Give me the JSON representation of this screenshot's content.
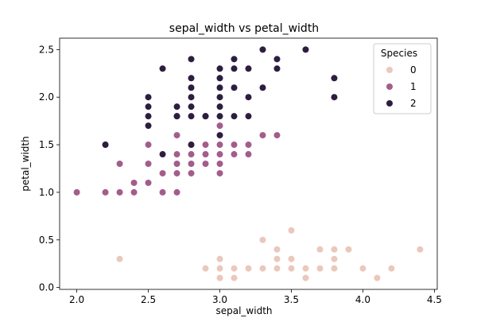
{
  "chart_data": {
    "type": "scatter",
    "title": "sepal_width vs petal_width",
    "xlabel": "sepal_width",
    "ylabel": "petal_width",
    "xlim": [
      1.88,
      4.52
    ],
    "ylim": [
      -0.02,
      2.62
    ],
    "xticks": [
      2.0,
      2.5,
      3.0,
      3.5,
      4.0,
      4.5
    ],
    "xtick_labels": [
      "2.0",
      "2.5",
      "3.0",
      "3.5",
      "4.0",
      "4.5"
    ],
    "yticks": [
      0.0,
      0.5,
      1.0,
      1.5,
      2.0,
      2.5
    ],
    "ytick_labels": [
      "0.0",
      "0.5",
      "1.0",
      "1.5",
      "2.0",
      "2.5"
    ],
    "grid": false,
    "legend": {
      "title": "Species",
      "placement": "top-right"
    },
    "series": [
      {
        "name": "0",
        "color": "#ebc8bc",
        "points": [
          [
            2.3,
            0.3
          ],
          [
            2.9,
            0.2
          ],
          [
            3.0,
            0.1
          ],
          [
            3.0,
            0.2
          ],
          [
            3.0,
            0.3
          ],
          [
            3.1,
            0.1
          ],
          [
            3.1,
            0.2
          ],
          [
            3.2,
            0.2
          ],
          [
            3.3,
            0.2
          ],
          [
            3.3,
            0.5
          ],
          [
            3.4,
            0.2
          ],
          [
            3.4,
            0.3
          ],
          [
            3.4,
            0.4
          ],
          [
            3.5,
            0.2
          ],
          [
            3.5,
            0.3
          ],
          [
            3.5,
            0.6
          ],
          [
            3.6,
            0.1
          ],
          [
            3.6,
            0.2
          ],
          [
            3.7,
            0.2
          ],
          [
            3.7,
            0.4
          ],
          [
            3.8,
            0.2
          ],
          [
            3.8,
            0.3
          ],
          [
            3.8,
            0.4
          ],
          [
            3.9,
            0.4
          ],
          [
            4.0,
            0.2
          ],
          [
            4.1,
            0.1
          ],
          [
            4.2,
            0.2
          ],
          [
            4.4,
            0.4
          ]
        ]
      },
      {
        "name": "1",
        "color": "#a35d8b",
        "points": [
          [
            2.0,
            1.0
          ],
          [
            2.2,
            1.0
          ],
          [
            2.2,
            1.5
          ],
          [
            2.3,
            1.0
          ],
          [
            2.3,
            1.3
          ],
          [
            2.4,
            1.0
          ],
          [
            2.4,
            1.1
          ],
          [
            2.5,
            1.1
          ],
          [
            2.5,
            1.3
          ],
          [
            2.5,
            1.5
          ],
          [
            2.6,
            1.0
          ],
          [
            2.6,
            1.2
          ],
          [
            2.7,
            1.0
          ],
          [
            2.7,
            1.2
          ],
          [
            2.7,
            1.3
          ],
          [
            2.7,
            1.4
          ],
          [
            2.7,
            1.6
          ],
          [
            2.8,
            1.2
          ],
          [
            2.8,
            1.3
          ],
          [
            2.8,
            1.4
          ],
          [
            2.8,
            1.5
          ],
          [
            2.9,
            1.3
          ],
          [
            2.9,
            1.4
          ],
          [
            2.9,
            1.5
          ],
          [
            3.0,
            1.2
          ],
          [
            3.0,
            1.4
          ],
          [
            3.0,
            1.5
          ],
          [
            3.0,
            1.7
          ],
          [
            3.1,
            1.4
          ],
          [
            3.1,
            1.5
          ],
          [
            3.2,
            1.4
          ],
          [
            3.2,
            1.5
          ],
          [
            3.3,
            1.6
          ],
          [
            3.4,
            1.6
          ],
          [
            3.0,
            1.3
          ]
        ]
      },
      {
        "name": "2",
        "color": "#2d1e3e",
        "points": [
          [
            2.2,
            1.5
          ],
          [
            2.5,
            1.7
          ],
          [
            2.5,
            1.8
          ],
          [
            2.5,
            1.9
          ],
          [
            2.5,
            2.0
          ],
          [
            2.6,
            1.4
          ],
          [
            2.6,
            2.3
          ],
          [
            2.7,
            1.8
          ],
          [
            2.7,
            1.9
          ],
          [
            2.8,
            1.5
          ],
          [
            2.8,
            1.8
          ],
          [
            2.8,
            1.9
          ],
          [
            2.8,
            2.0
          ],
          [
            2.8,
            2.1
          ],
          [
            2.8,
            2.2
          ],
          [
            2.8,
            2.4
          ],
          [
            2.9,
            1.8
          ],
          [
            3.0,
            1.6
          ],
          [
            3.0,
            1.8
          ],
          [
            3.0,
            1.9
          ],
          [
            3.0,
            2.0
          ],
          [
            3.0,
            2.1
          ],
          [
            3.0,
            2.2
          ],
          [
            3.0,
            2.3
          ],
          [
            3.1,
            1.8
          ],
          [
            3.1,
            2.1
          ],
          [
            3.1,
            2.3
          ],
          [
            3.1,
            2.4
          ],
          [
            3.2,
            1.8
          ],
          [
            3.2,
            2.0
          ],
          [
            3.2,
            2.3
          ],
          [
            3.3,
            2.1
          ],
          [
            3.3,
            2.5
          ],
          [
            3.4,
            2.3
          ],
          [
            3.4,
            2.4
          ],
          [
            3.6,
            2.5
          ],
          [
            3.8,
            2.0
          ],
          [
            3.8,
            2.2
          ],
          [
            2.9,
            1.8
          ],
          [
            2.7,
            1.8
          ]
        ]
      }
    ]
  }
}
